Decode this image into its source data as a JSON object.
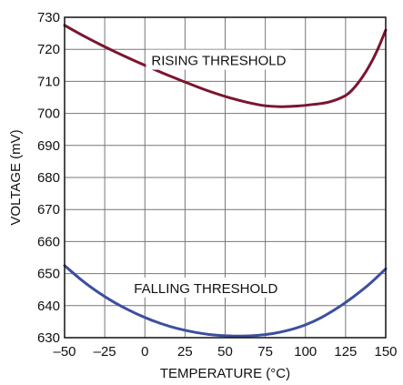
{
  "chart_data": {
    "type": "line",
    "xlabel": "TEMPERATURE (°C)",
    "ylabel": "VOLTAGE (mV)",
    "xlim": [
      -50,
      150
    ],
    "ylim": [
      630,
      730
    ],
    "xticks": [
      -50,
      -25,
      0,
      25,
      50,
      75,
      100,
      125,
      150
    ],
    "yticks": [
      630,
      640,
      650,
      660,
      670,
      680,
      690,
      700,
      710,
      720,
      730
    ],
    "xtick_labels": [
      "–50",
      "–25",
      "0",
      "25",
      "50",
      "75",
      "100",
      "125",
      "150"
    ],
    "ytick_labels": [
      "630",
      "640",
      "650",
      "660",
      "670",
      "680",
      "690",
      "700",
      "710",
      "720",
      "730"
    ],
    "grid": true,
    "annotations": [
      {
        "text": "RISING THRESHOLD",
        "series": 0
      },
      {
        "text": "FALLING THRESHOLD",
        "series": 1
      }
    ],
    "series": [
      {
        "color": "#7b1530",
        "x": [
          -50,
          -37.5,
          -25,
          -12.5,
          0,
          12.5,
          25,
          37.5,
          50,
          62.5,
          75,
          85,
          95,
          105,
          115,
          125,
          130,
          135,
          140,
          145,
          150
        ],
        "y": [
          727.5,
          724,
          720.8,
          717.8,
          715,
          712.3,
          709.8,
          707.4,
          705.3,
          703.6,
          702.4,
          702.1,
          702.3,
          702.8,
          703.6,
          705.6,
          707.8,
          711,
          715,
          720,
          726
        ]
      },
      {
        "color": "#3c4f9e",
        "x": [
          -50,
          -40,
          -30,
          -20,
          -10,
          0,
          10,
          20,
          30,
          40,
          50,
          60,
          70,
          80,
          90,
          100,
          110,
          120,
          130,
          140,
          150
        ],
        "y": [
          652.5,
          648.2,
          644.5,
          641.3,
          638.6,
          636.3,
          634.4,
          632.9,
          631.8,
          631,
          630.6,
          630.5,
          630.7,
          631.3,
          632.4,
          634,
          636.3,
          639.3,
          642.8,
          646.8,
          651.5
        ]
      }
    ]
  }
}
